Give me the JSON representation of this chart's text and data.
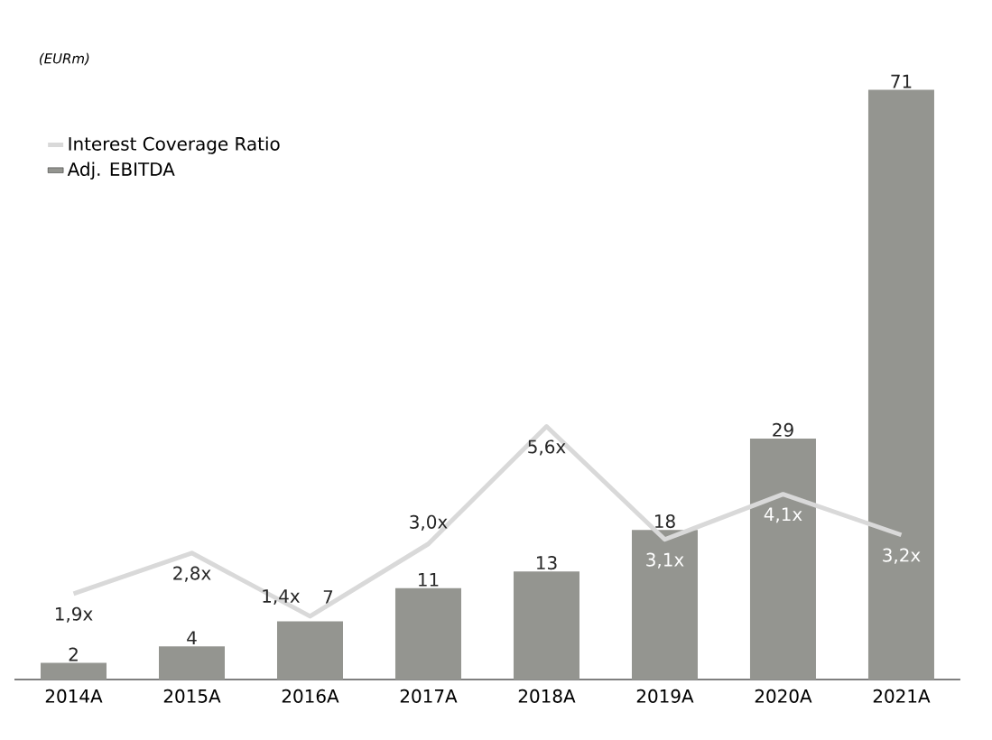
{
  "chart_data": {
    "type": "bar",
    "ylabel": "(EURm)",
    "categories": [
      "2014A",
      "2015A",
      "2016A",
      "2017A",
      "2018A",
      "2019A",
      "2020A",
      "2021A"
    ],
    "series": [
      {
        "name": "Adj. EBITDA",
        "type": "bar",
        "color": "#949590",
        "values": [
          2,
          4,
          7,
          11,
          13,
          18,
          29,
          71
        ]
      },
      {
        "name": "Interest Coverage Ratio",
        "type": "line",
        "axis": "y2",
        "color": "#d9d9d9",
        "values": [
          1.9,
          2.8,
          1.4,
          3.0,
          5.6,
          3.1,
          4.1,
          3.2
        ],
        "value_labels": [
          "1,9x",
          "2,8x",
          "1,4x",
          "3,0x",
          "5,6x",
          "3,1x",
          "4,1x",
          "3,2x"
        ]
      }
    ],
    "data_labels": true,
    "legend": "top left",
    "tick_labels": "x",
    "marker": "none",
    "line_style": "solid"
  }
}
